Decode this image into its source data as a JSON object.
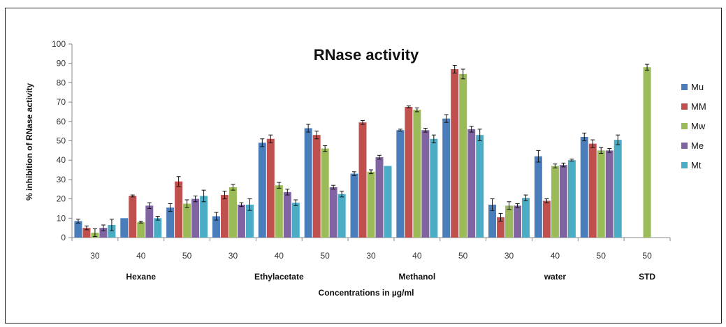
{
  "chart_data": {
    "type": "bar",
    "title": "RNase activity",
    "ylabel": "% inhibition of RNase activity",
    "xlabel": "Concentrations in µg/ml",
    "ylim": [
      0,
      100
    ],
    "yticks": [
      0,
      10,
      20,
      30,
      40,
      50,
      60,
      70,
      80,
      90,
      100
    ],
    "legend_position": "right",
    "grid": false,
    "groups": [
      {
        "name": "Hexane",
        "categories": [
          "30",
          "40",
          "50"
        ]
      },
      {
        "name": "Ethylacetate",
        "categories": [
          "30",
          "40",
          "50"
        ]
      },
      {
        "name": "Methanol",
        "categories": [
          "30",
          "40",
          "50"
        ]
      },
      {
        "name": "water",
        "categories": [
          "30",
          "40",
          "50"
        ]
      },
      {
        "name": "STD",
        "categories": [
          "50"
        ]
      }
    ],
    "categories": [
      "30",
      "40",
      "50",
      "30",
      "40",
      "50",
      "30",
      "40",
      "50",
      "30",
      "40",
      "50",
      "50"
    ],
    "series": [
      {
        "name": "Mu",
        "color": "#4a7ebb",
        "values": [
          8.5,
          10,
          15.5,
          11,
          49,
          56.5,
          33,
          55.5,
          61.5,
          17,
          42,
          52,
          null
        ],
        "errors": [
          1,
          0,
          2,
          2,
          2,
          2,
          1,
          0.5,
          2,
          3,
          3,
          2,
          null
        ]
      },
      {
        "name": "MM",
        "color": "#c0504d",
        "values": [
          5,
          21.5,
          29,
          22,
          51,
          53,
          59.5,
          67.5,
          87,
          10.5,
          19,
          48.5,
          null
        ],
        "errors": [
          1,
          0.5,
          2.5,
          2,
          2,
          2,
          1,
          0.5,
          2,
          2,
          1,
          2,
          null
        ]
      },
      {
        "name": "Mw",
        "color": "#9bbb59",
        "values": [
          2.5,
          8,
          17.5,
          26,
          27,
          46,
          34,
          66,
          84.5,
          16.5,
          37,
          45,
          88
        ],
        "errors": [
          2,
          0.5,
          2,
          1.5,
          1.5,
          1.5,
          1,
          1,
          2.5,
          2,
          1,
          1.5,
          1.5
        ]
      },
      {
        "name": "Me",
        "color": "#8064a2",
        "values": [
          5,
          16.5,
          20,
          17,
          23.5,
          26,
          41.5,
          55.5,
          56,
          16.5,
          37.5,
          45,
          null
        ],
        "errors": [
          1.5,
          1.5,
          1.5,
          1,
          1.5,
          1,
          1,
          1,
          1.5,
          1,
          1,
          1,
          null
        ]
      },
      {
        "name": "Mt",
        "color": "#4bacc6",
        "values": [
          6.5,
          10,
          21.5,
          17,
          18,
          22.5,
          37,
          51,
          53,
          20.5,
          40,
          50.5,
          null
        ],
        "errors": [
          3,
          1,
          3,
          3,
          1.5,
          1.5,
          0,
          2,
          3,
          1.5,
          0.5,
          2.5,
          null
        ]
      }
    ]
  }
}
